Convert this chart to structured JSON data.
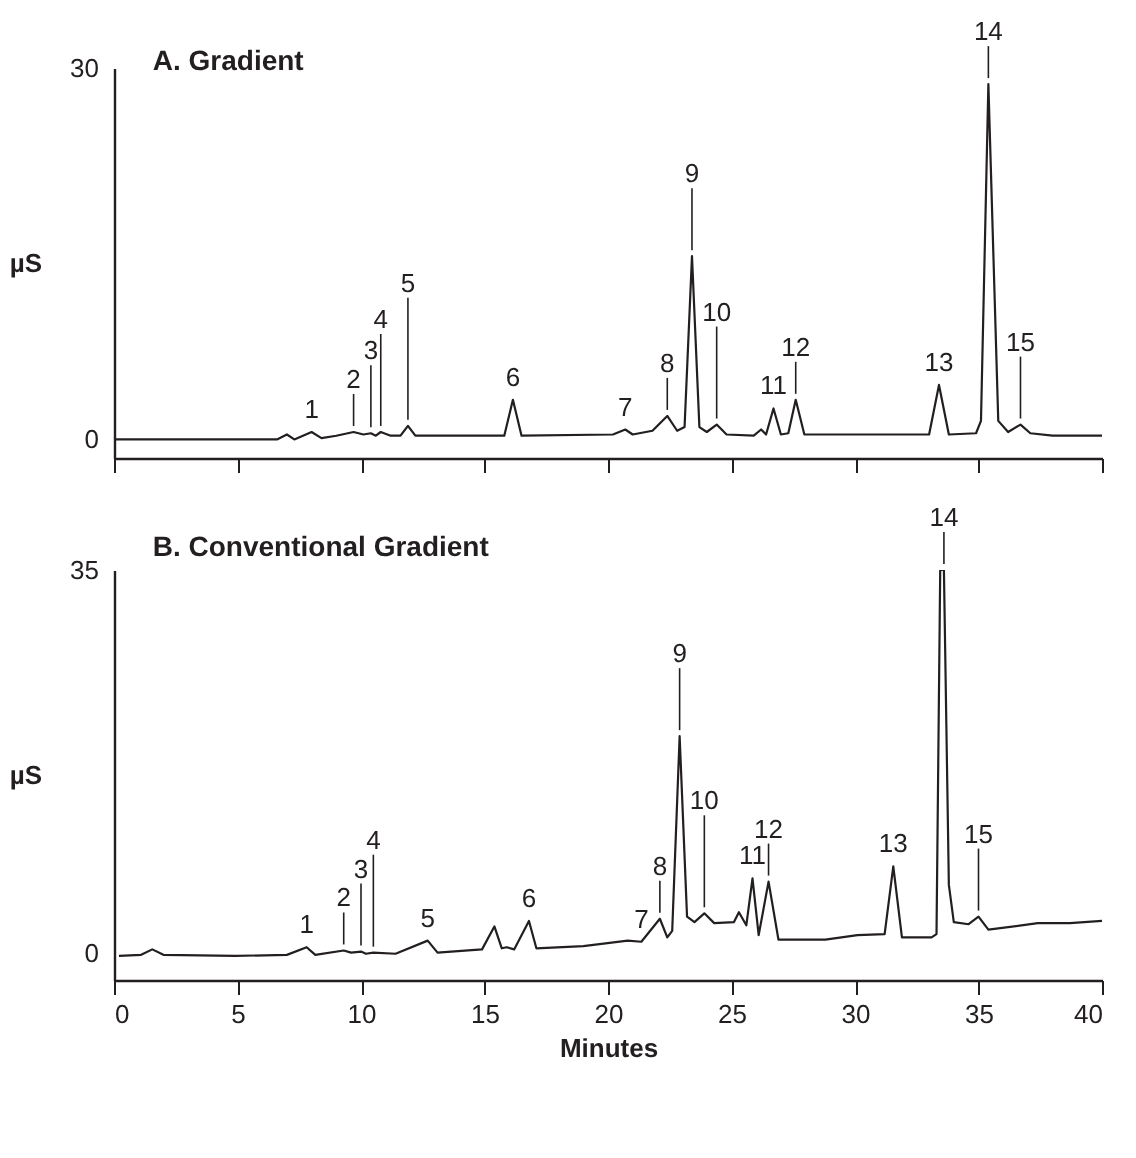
{
  "chart_data": [
    {
      "type": "line",
      "title": "A. Gradient",
      "ylabel": "µS",
      "xlim": [
        0,
        40
      ],
      "xticks": [
        0,
        5,
        10,
        15,
        20,
        25,
        30,
        35,
        40
      ],
      "ylim": [
        -1.5,
        30
      ],
      "yticks": [
        0,
        30
      ],
      "tick_labels": "y",
      "x": [
        0,
        3,
        6.6,
        7.0,
        7.3,
        8.0,
        8.4,
        9.0,
        9.7,
        10.1,
        10.4,
        10.6,
        10.8,
        11.2,
        11.6,
        11.9,
        12.2,
        15.8,
        16.15,
        16.5,
        20.2,
        20.7,
        21.0,
        21.8,
        22.4,
        22.8,
        23.1,
        23.4,
        23.7,
        24.0,
        24.4,
        24.8,
        25.9,
        26.2,
        26.4,
        26.7,
        27.0,
        27.3,
        27.6,
        27.95,
        33.0,
        33.4,
        33.8,
        34.9,
        35.1,
        35.4,
        35.8,
        36.2,
        36.7,
        37.1,
        38,
        40
      ],
      "series": [
        {
          "color": "#231f20",
          "values": [
            0.0,
            0.0,
            0.0,
            0.4,
            0.0,
            0.6,
            0.1,
            0.3,
            0.6,
            0.4,
            0.5,
            0.3,
            0.6,
            0.3,
            0.3,
            1.1,
            0.3,
            0.3,
            3.2,
            0.3,
            0.4,
            0.8,
            0.4,
            0.7,
            1.9,
            0.7,
            1.0,
            14.8,
            1.0,
            0.6,
            1.2,
            0.4,
            0.3,
            0.8,
            0.4,
            2.5,
            0.4,
            0.5,
            3.2,
            0.4,
            0.4,
            4.4,
            0.4,
            0.5,
            1.5,
            28.7,
            1.5,
            0.6,
            1.2,
            0.5,
            0.3,
            0.3
          ]
        }
      ],
      "annotations": [
        {
          "text": "1",
          "x": 8.0,
          "y": 0.6
        },
        {
          "text": "2",
          "x": 9.7,
          "y": 0.6
        },
        {
          "text": "3",
          "x": 10.4,
          "y": 0.5
        },
        {
          "text": "4",
          "x": 10.8,
          "y": 0.6
        },
        {
          "text": "5",
          "x": 11.9,
          "y": 1.1
        },
        {
          "text": "6",
          "x": 16.15,
          "y": 3.2
        },
        {
          "text": "7",
          "x": 20.7,
          "y": 0.8
        },
        {
          "text": "8",
          "x": 22.4,
          "y": 1.9
        },
        {
          "text": "9",
          "x": 23.4,
          "y": 14.8
        },
        {
          "text": "10",
          "x": 24.4,
          "y": 1.2
        },
        {
          "text": "11",
          "x": 26.7,
          "y": 2.5
        },
        {
          "text": "12",
          "x": 27.6,
          "y": 3.2
        },
        {
          "text": "13",
          "x": 33.4,
          "y": 4.4
        },
        {
          "text": "14",
          "x": 35.4,
          "y": 28.7
        },
        {
          "text": "15",
          "x": 36.7,
          "y": 1.2
        }
      ]
    },
    {
      "type": "line",
      "title": "B. Conventional Gradient",
      "ylabel": "µS",
      "xlabel": "Minutes",
      "xlim": [
        0,
        40
      ],
      "xticks": [
        0,
        5,
        10,
        15,
        20,
        25,
        30,
        35,
        40
      ],
      "ylim": [
        -2.5,
        35
      ],
      "yticks": [
        0,
        35
      ],
      "x": [
        0.2,
        1.1,
        1.55,
        2.0,
        4.9,
        7.0,
        7.8,
        8.15,
        9.3,
        9.6,
        10.0,
        10.2,
        10.5,
        11.4,
        12.7,
        13.1,
        14.9,
        15.4,
        15.7,
        15.9,
        16.2,
        16.8,
        17.1,
        19.0,
        20.8,
        21.35,
        22.1,
        22.4,
        22.6,
        22.9,
        23.2,
        23.5,
        23.9,
        24.3,
        25.1,
        25.3,
        25.6,
        25.85,
        26.1,
        26.5,
        26.9,
        28.8,
        30.1,
        31.2,
        31.55,
        31.9,
        33.1,
        33.3,
        33.45,
        33.6,
        33.8,
        34.0,
        34.6,
        35.0,
        35.4,
        37.4,
        38.7,
        40.0
      ],
      "series": [
        {
          "color": "#231f20",
          "values": [
            -0.3,
            -0.2,
            0.3,
            -0.2,
            -0.3,
            -0.2,
            0.5,
            -0.2,
            0.2,
            0.0,
            0.1,
            -0.1,
            0.0,
            -0.1,
            1.1,
            0.0,
            0.3,
            2.4,
            0.4,
            0.5,
            0.3,
            2.9,
            0.4,
            0.6,
            1.1,
            1.0,
            3.1,
            1.4,
            2.0,
            19.8,
            3.3,
            2.8,
            3.6,
            2.7,
            2.8,
            3.7,
            2.5,
            6.8,
            1.6,
            6.5,
            1.2,
            1.2,
            1.6,
            1.7,
            7.9,
            1.4,
            1.4,
            1.7,
            35,
            35,
            6.2,
            2.8,
            2.6,
            3.3,
            2.1,
            2.7,
            2.7,
            2.9
          ]
        }
      ],
      "annotations": [
        {
          "text": "1",
          "x": 7.8,
          "y": 0.5
        },
        {
          "text": "2",
          "x": 9.3,
          "y": 0.2
        },
        {
          "text": "3",
          "x": 10.0,
          "y": 0.1
        },
        {
          "text": "4",
          "x": 10.5,
          "y": 0.0
        },
        {
          "text": "5",
          "x": 12.7,
          "y": 1.1
        },
        {
          "text": "6",
          "x": 16.8,
          "y": 2.9
        },
        {
          "text": "7",
          "x": 21.35,
          "y": 1.0
        },
        {
          "text": "8",
          "x": 22.1,
          "y": 3.1
        },
        {
          "text": "9",
          "x": 22.9,
          "y": 19.8
        },
        {
          "text": "10",
          "x": 23.9,
          "y": 3.6
        },
        {
          "text": "11",
          "x": 25.85,
          "y": 6.8
        },
        {
          "text": "12",
          "x": 26.5,
          "y": 6.5
        },
        {
          "text": "13",
          "x": 31.55,
          "y": 7.9
        },
        {
          "text": "14",
          "x": 33.6,
          "y": 35
        },
        {
          "text": "15",
          "x": 35.0,
          "y": 3.3
        }
      ]
    }
  ]
}
